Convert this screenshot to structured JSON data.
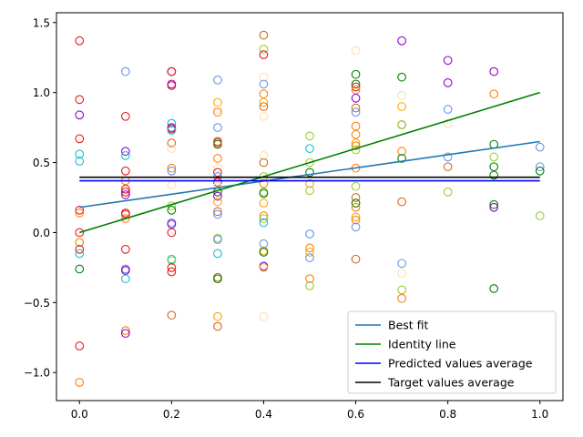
{
  "chart_data": {
    "type": "scatter",
    "title": "",
    "xlabel": "",
    "ylabel": "",
    "xlim": [
      -0.05,
      1.05
    ],
    "ylim": [
      -1.2,
      1.57
    ],
    "xticks": [
      0.0,
      0.2,
      0.4,
      0.6,
      0.8,
      1.0
    ],
    "xtick_labels": [
      "0.0",
      "0.2",
      "0.4",
      "0.6",
      "0.8",
      "1.0"
    ],
    "yticks": [
      -1.0,
      -0.5,
      0.0,
      0.5,
      1.0,
      1.5
    ],
    "ytick_labels": [
      "−1.0",
      "−0.5",
      "0.0",
      "0.5",
      "1.0",
      "1.5"
    ],
    "grid": false,
    "legend_position": "lower right",
    "lines": [
      {
        "name": "Best fit",
        "color": "#1f77b4",
        "x": [
          0.0,
          1.0
        ],
        "y": [
          0.18,
          0.65
        ]
      },
      {
        "name": "Identity line",
        "color": "#008000",
        "x": [
          0.0,
          1.0
        ],
        "y": [
          0.0,
          1.0
        ]
      },
      {
        "name": "Predicted values average",
        "color": "#0000ff",
        "x": [
          0.0,
          1.0
        ],
        "y": [
          0.37,
          0.37
        ]
      },
      {
        "name": "Target values average",
        "color": "#000000",
        "x": [
          0.0,
          1.0
        ],
        "y": [
          0.395,
          0.395
        ]
      }
    ],
    "points": [
      {
        "x": 0.0,
        "y": 1.37,
        "color": "#e31a1c"
      },
      {
        "x": 0.0,
        "y": 0.95,
        "color": "#e31a1c"
      },
      {
        "x": 0.0,
        "y": 0.84,
        "color": "#9400d3"
      },
      {
        "x": 0.0,
        "y": 0.67,
        "color": "#e31a1c"
      },
      {
        "x": 0.0,
        "y": 0.56,
        "color": "#17becf"
      },
      {
        "x": 0.0,
        "y": 0.51,
        "color": "#17becf"
      },
      {
        "x": 0.0,
        "y": 0.16,
        "color": "#e31a1c"
      },
      {
        "x": 0.0,
        "y": 0.14,
        "color": "#ff7f0e"
      },
      {
        "x": 0.0,
        "y": 0.0,
        "color": "#e31a1c"
      },
      {
        "x": 0.0,
        "y": -0.07,
        "color": "#ff7f0e"
      },
      {
        "x": 0.0,
        "y": -0.12,
        "color": "#e31a1c"
      },
      {
        "x": 0.0,
        "y": -0.15,
        "color": "#17becf"
      },
      {
        "x": 0.0,
        "y": -0.26,
        "color": "#008000"
      },
      {
        "x": 0.0,
        "y": -0.81,
        "color": "#e31a1c"
      },
      {
        "x": 0.0,
        "y": -1.07,
        "color": "#ff7f0e"
      },
      {
        "x": 0.1,
        "y": 1.15,
        "color": "#6495ed"
      },
      {
        "x": 0.1,
        "y": 0.83,
        "color": "#e31a1c"
      },
      {
        "x": 0.1,
        "y": 0.58,
        "color": "#9400d3"
      },
      {
        "x": 0.1,
        "y": 0.55,
        "color": "#17becf"
      },
      {
        "x": 0.1,
        "y": 0.44,
        "color": "#e31a1c"
      },
      {
        "x": 0.1,
        "y": 0.37,
        "color": "#ff7f0e"
      },
      {
        "x": 0.1,
        "y": 0.31,
        "color": "#e31a1c"
      },
      {
        "x": 0.1,
        "y": 0.29,
        "color": "#e31a1c"
      },
      {
        "x": 0.1,
        "y": 0.27,
        "color": "#9400d3"
      },
      {
        "x": 0.1,
        "y": 0.14,
        "color": "#e31a1c"
      },
      {
        "x": 0.1,
        "y": 0.13,
        "color": "#e31a1c"
      },
      {
        "x": 0.1,
        "y": 0.1,
        "color": "#ff7f0e"
      },
      {
        "x": 0.1,
        "y": -0.12,
        "color": "#e31a1c"
      },
      {
        "x": 0.1,
        "y": -0.26,
        "color": "#6495ed"
      },
      {
        "x": 0.1,
        "y": -0.27,
        "color": "#e31a1c"
      },
      {
        "x": 0.1,
        "y": -0.27,
        "color": "#9400d3"
      },
      {
        "x": 0.1,
        "y": -0.33,
        "color": "#17becf"
      },
      {
        "x": 0.1,
        "y": -0.7,
        "color": "#ff7f0e"
      },
      {
        "x": 0.1,
        "y": -0.72,
        "color": "#9400d3"
      },
      {
        "x": 0.2,
        "y": 1.15,
        "color": "#9400d3"
      },
      {
        "x": 0.2,
        "y": 1.15,
        "color": "#e31a1c"
      },
      {
        "x": 0.2,
        "y": 1.06,
        "color": "#9400d3"
      },
      {
        "x": 0.2,
        "y": 1.05,
        "color": "#e31a1c"
      },
      {
        "x": 0.2,
        "y": 0.78,
        "color": "#17becf"
      },
      {
        "x": 0.2,
        "y": 0.75,
        "color": "#9400d3"
      },
      {
        "x": 0.2,
        "y": 0.74,
        "color": "#e31a1c"
      },
      {
        "x": 0.2,
        "y": 0.73,
        "color": "#17becf"
      },
      {
        "x": 0.2,
        "y": 0.64,
        "color": "#d2691e"
      },
      {
        "x": 0.2,
        "y": 0.6,
        "color": "#ffdead"
      },
      {
        "x": 0.2,
        "y": 0.46,
        "color": "#ff7f0e"
      },
      {
        "x": 0.2,
        "y": 0.44,
        "color": "#6495ed"
      },
      {
        "x": 0.2,
        "y": 0.34,
        "color": "#ffdead"
      },
      {
        "x": 0.2,
        "y": 0.19,
        "color": "#9acd32"
      },
      {
        "x": 0.2,
        "y": 0.16,
        "color": "#008000"
      },
      {
        "x": 0.2,
        "y": 0.07,
        "color": "#6495ed"
      },
      {
        "x": 0.2,
        "y": 0.06,
        "color": "#9400d3"
      },
      {
        "x": 0.2,
        "y": 0.0,
        "color": "#e31a1c"
      },
      {
        "x": 0.2,
        "y": -0.19,
        "color": "#17becf"
      },
      {
        "x": 0.2,
        "y": -0.2,
        "color": "#9acd32"
      },
      {
        "x": 0.2,
        "y": -0.25,
        "color": "#e31a1c"
      },
      {
        "x": 0.2,
        "y": -0.28,
        "color": "#e31a1c"
      },
      {
        "x": 0.2,
        "y": -0.59,
        "color": "#d2691e"
      },
      {
        "x": 0.3,
        "y": 1.09,
        "color": "#6495ed"
      },
      {
        "x": 0.3,
        "y": 0.93,
        "color": "#ffa500"
      },
      {
        "x": 0.3,
        "y": 0.88,
        "color": "#ffdead"
      },
      {
        "x": 0.3,
        "y": 0.86,
        "color": "#ff7f0e"
      },
      {
        "x": 0.3,
        "y": 0.75,
        "color": "#6495ed"
      },
      {
        "x": 0.3,
        "y": 0.65,
        "color": "#e31a1c"
      },
      {
        "x": 0.3,
        "y": 0.63,
        "color": "#008000"
      },
      {
        "x": 0.3,
        "y": 0.64,
        "color": "#d2691e"
      },
      {
        "x": 0.3,
        "y": 0.53,
        "color": "#ff7f0e"
      },
      {
        "x": 0.3,
        "y": 0.46,
        "color": "#ffdead"
      },
      {
        "x": 0.3,
        "y": 0.43,
        "color": "#e31a1c"
      },
      {
        "x": 0.3,
        "y": 0.4,
        "color": "#6495ed"
      },
      {
        "x": 0.3,
        "y": 0.36,
        "color": "#e31a1c"
      },
      {
        "x": 0.3,
        "y": 0.33,
        "color": "#ffdead"
      },
      {
        "x": 0.3,
        "y": 0.29,
        "color": "#008000"
      },
      {
        "x": 0.3,
        "y": 0.26,
        "color": "#9400d3"
      },
      {
        "x": 0.3,
        "y": 0.22,
        "color": "#ffa500"
      },
      {
        "x": 0.3,
        "y": 0.15,
        "color": "#d2691e"
      },
      {
        "x": 0.3,
        "y": 0.13,
        "color": "#6495ed"
      },
      {
        "x": 0.3,
        "y": -0.04,
        "color": "#9acd32"
      },
      {
        "x": 0.3,
        "y": -0.05,
        "color": "#6495ed"
      },
      {
        "x": 0.3,
        "y": -0.15,
        "color": "#17becf"
      },
      {
        "x": 0.3,
        "y": -0.32,
        "color": "#d2691e"
      },
      {
        "x": 0.3,
        "y": -0.33,
        "color": "#008000"
      },
      {
        "x": 0.3,
        "y": -0.6,
        "color": "#ffa500"
      },
      {
        "x": 0.3,
        "y": -0.67,
        "color": "#d2691e"
      },
      {
        "x": 0.4,
        "y": 1.41,
        "color": "#d2691e"
      },
      {
        "x": 0.4,
        "y": 1.31,
        "color": "#9acd32"
      },
      {
        "x": 0.4,
        "y": 1.27,
        "color": "#e31a1c"
      },
      {
        "x": 0.4,
        "y": 1.11,
        "color": "#ffdead"
      },
      {
        "x": 0.4,
        "y": 1.06,
        "color": "#6495ed"
      },
      {
        "x": 0.4,
        "y": 0.99,
        "color": "#ff7f0e"
      },
      {
        "x": 0.4,
        "y": 0.93,
        "color": "#ffa500"
      },
      {
        "x": 0.4,
        "y": 0.9,
        "color": "#d2691e"
      },
      {
        "x": 0.4,
        "y": 0.83,
        "color": "#ffdead"
      },
      {
        "x": 0.4,
        "y": 0.55,
        "color": "#ffdead"
      },
      {
        "x": 0.4,
        "y": 0.5,
        "color": "#d2691e"
      },
      {
        "x": 0.4,
        "y": 0.4,
        "color": "#9acd32"
      },
      {
        "x": 0.4,
        "y": 0.35,
        "color": "#ff7f0e"
      },
      {
        "x": 0.4,
        "y": 0.29,
        "color": "#9acd32"
      },
      {
        "x": 0.4,
        "y": 0.28,
        "color": "#008000"
      },
      {
        "x": 0.4,
        "y": 0.21,
        "color": "#ffa500"
      },
      {
        "x": 0.4,
        "y": 0.12,
        "color": "#ff7f0e"
      },
      {
        "x": 0.4,
        "y": 0.1,
        "color": "#9acd32"
      },
      {
        "x": 0.4,
        "y": 0.07,
        "color": "#17becf"
      },
      {
        "x": 0.4,
        "y": -0.08,
        "color": "#6495ed"
      },
      {
        "x": 0.4,
        "y": -0.13,
        "color": "#ffa500"
      },
      {
        "x": 0.4,
        "y": -0.14,
        "color": "#008000"
      },
      {
        "x": 0.4,
        "y": -0.24,
        "color": "#9400d3"
      },
      {
        "x": 0.4,
        "y": -0.25,
        "color": "#ffa500"
      },
      {
        "x": 0.4,
        "y": -0.6,
        "color": "#ffdead"
      },
      {
        "x": 0.5,
        "y": 0.69,
        "color": "#9acd32"
      },
      {
        "x": 0.5,
        "y": 0.6,
        "color": "#17becf"
      },
      {
        "x": 0.5,
        "y": 0.5,
        "color": "#9acd32"
      },
      {
        "x": 0.5,
        "y": 0.43,
        "color": "#008000"
      },
      {
        "x": 0.5,
        "y": 0.35,
        "color": "#ffa500"
      },
      {
        "x": 0.5,
        "y": 0.3,
        "color": "#9acd32"
      },
      {
        "x": 0.5,
        "y": -0.01,
        "color": "#6495ed"
      },
      {
        "x": 0.5,
        "y": -0.11,
        "color": "#ff7f0e"
      },
      {
        "x": 0.5,
        "y": -0.14,
        "color": "#ffa500"
      },
      {
        "x": 0.5,
        "y": -0.18,
        "color": "#6495ed"
      },
      {
        "x": 0.5,
        "y": -0.33,
        "color": "#ff7f0e"
      },
      {
        "x": 0.5,
        "y": -0.38,
        "color": "#9acd32"
      },
      {
        "x": 0.6,
        "y": 1.3,
        "color": "#ffdead"
      },
      {
        "x": 0.6,
        "y": 1.13,
        "color": "#008000"
      },
      {
        "x": 0.6,
        "y": 1.06,
        "color": "#008000"
      },
      {
        "x": 0.6,
        "y": 1.04,
        "color": "#e31a1c"
      },
      {
        "x": 0.6,
        "y": 1.02,
        "color": "#ff7f0e"
      },
      {
        "x": 0.6,
        "y": 0.96,
        "color": "#9400d3"
      },
      {
        "x": 0.6,
        "y": 0.89,
        "color": "#d2691e"
      },
      {
        "x": 0.6,
        "y": 0.86,
        "color": "#6495ed"
      },
      {
        "x": 0.6,
        "y": 0.76,
        "color": "#ff7f0e"
      },
      {
        "x": 0.6,
        "y": 0.7,
        "color": "#ff7f0e"
      },
      {
        "x": 0.6,
        "y": 0.64,
        "color": "#ffa500"
      },
      {
        "x": 0.6,
        "y": 0.62,
        "color": "#ff7f0e"
      },
      {
        "x": 0.6,
        "y": 0.59,
        "color": "#9acd32"
      },
      {
        "x": 0.6,
        "y": 0.46,
        "color": "#ff7f0e"
      },
      {
        "x": 0.6,
        "y": 0.33,
        "color": "#9acd32"
      },
      {
        "x": 0.6,
        "y": 0.25,
        "color": "#d2691e"
      },
      {
        "x": 0.6,
        "y": 0.21,
        "color": "#008000"
      },
      {
        "x": 0.6,
        "y": 0.18,
        "color": "#ff7f0e"
      },
      {
        "x": 0.6,
        "y": 0.11,
        "color": "#ffa500"
      },
      {
        "x": 0.6,
        "y": 0.09,
        "color": "#ff7f0e"
      },
      {
        "x": 0.6,
        "y": 0.04,
        "color": "#6495ed"
      },
      {
        "x": 0.6,
        "y": -0.19,
        "color": "#d2691e"
      },
      {
        "x": 0.7,
        "y": 1.37,
        "color": "#9400d3"
      },
      {
        "x": 0.7,
        "y": 1.11,
        "color": "#008000"
      },
      {
        "x": 0.7,
        "y": 0.98,
        "color": "#ffdead"
      },
      {
        "x": 0.7,
        "y": 0.9,
        "color": "#ffa500"
      },
      {
        "x": 0.7,
        "y": 0.77,
        "color": "#008000"
      },
      {
        "x": 0.7,
        "y": 0.77,
        "color": "#9acd32"
      },
      {
        "x": 0.7,
        "y": 0.58,
        "color": "#ff7f0e"
      },
      {
        "x": 0.7,
        "y": 0.53,
        "color": "#008000"
      },
      {
        "x": 0.7,
        "y": 0.22,
        "color": "#d2691e"
      },
      {
        "x": 0.7,
        "y": -0.22,
        "color": "#6495ed"
      },
      {
        "x": 0.7,
        "y": -0.29,
        "color": "#ffdead"
      },
      {
        "x": 0.7,
        "y": -0.41,
        "color": "#9acd32"
      },
      {
        "x": 0.7,
        "y": -0.47,
        "color": "#ff7f0e"
      },
      {
        "x": 0.8,
        "y": 1.23,
        "color": "#9400d3"
      },
      {
        "x": 0.8,
        "y": 1.07,
        "color": "#9400d3"
      },
      {
        "x": 0.8,
        "y": 0.88,
        "color": "#6495ed"
      },
      {
        "x": 0.8,
        "y": 0.78,
        "color": "#ffdead"
      },
      {
        "x": 0.8,
        "y": 0.54,
        "color": "#6495ed"
      },
      {
        "x": 0.8,
        "y": 0.47,
        "color": "#d2691e"
      },
      {
        "x": 0.8,
        "y": 0.29,
        "color": "#9acd32"
      },
      {
        "x": 0.9,
        "y": 1.15,
        "color": "#9400d3"
      },
      {
        "x": 0.9,
        "y": 0.99,
        "color": "#ff7f0e"
      },
      {
        "x": 0.9,
        "y": 0.63,
        "color": "#008000"
      },
      {
        "x": 0.9,
        "y": 0.54,
        "color": "#9acd32"
      },
      {
        "x": 0.9,
        "y": 0.47,
        "color": "#008000"
      },
      {
        "x": 0.9,
        "y": 0.41,
        "color": "#008000"
      },
      {
        "x": 0.9,
        "y": 0.2,
        "color": "#008000"
      },
      {
        "x": 0.9,
        "y": 0.18,
        "color": "#9400d3"
      },
      {
        "x": 0.9,
        "y": -0.4,
        "color": "#008000"
      },
      {
        "x": 1.0,
        "y": 0.61,
        "color": "#6495ed"
      },
      {
        "x": 1.0,
        "y": 0.47,
        "color": "#6495ed"
      },
      {
        "x": 1.0,
        "y": 0.44,
        "color": "#008000"
      },
      {
        "x": 1.0,
        "y": 0.12,
        "color": "#9acd32"
      }
    ]
  }
}
